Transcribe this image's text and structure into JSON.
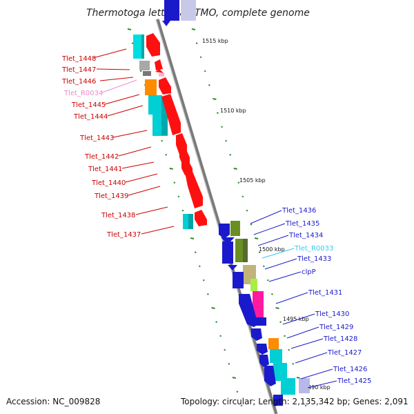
{
  "title": "Thermotoga lettingae TMO, complete genome",
  "accession": "Accession: NC_009828",
  "summary": "Topology: circular; Length: 2,135,342 bp; Genes: 2,091",
  "colors": {
    "left_label": "#cc0000",
    "right_label": "#1a1acc",
    "rna_left_label": "#ee88cc",
    "rna_right_label": "#33ccee",
    "backbone": "#888888",
    "tick": "#2e8b2e"
  },
  "kbp_labels": [
    "1515 kbp",
    "1510 kbp",
    "1505 kbp",
    "1500 kbp",
    "1495 kbp",
    "1490 kbp"
  ],
  "left_genes": [
    "Tlet_1448",
    "Tlet_1447",
    "Tlet_1446",
    "Tlet_R0034",
    "Tlet_1445",
    "Tlet_1444",
    "Tlet_1443",
    "Tlet_1442",
    "Tlet_1441",
    "Tlet_1440",
    "Tlet_1439",
    "Tlet_1438",
    "Tlet_1437"
  ],
  "right_genes": [
    "Tlet_1436",
    "Tlet_1435",
    "Tlet_1434",
    "Tlet_R0033",
    "Tlet_1433",
    "clpP",
    "Tlet_1431",
    "Tlet_1430",
    "Tlet_1429",
    "Tlet_1428",
    "Tlet_1427",
    "Tlet_1426",
    "Tlet_1425"
  ]
}
